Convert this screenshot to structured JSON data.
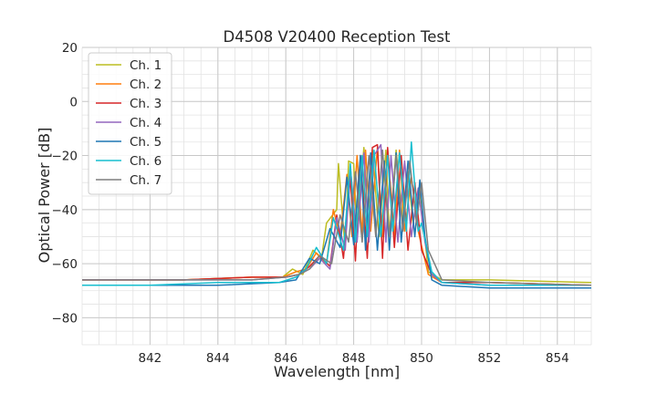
{
  "chart_data": {
    "type": "line",
    "title": "D4508 V20400 Reception Test",
    "xlabel": "Wavelength [nm]",
    "ylabel": "Optical Power [dB]",
    "xlim": [
      840.0,
      855.0
    ],
    "ylim": [
      -90,
      20
    ],
    "x_ticks": [
      842,
      844,
      846,
      848,
      850,
      852,
      854
    ],
    "x_tick_labels": [
      "842",
      "844",
      "846",
      "848",
      "850",
      "852",
      "854"
    ],
    "y_ticks": [
      -80,
      -60,
      -40,
      -20,
      0,
      20
    ],
    "y_tick_labels": [
      "−80",
      "−60",
      "−40",
      "−20",
      "0",
      "20"
    ],
    "grid": true,
    "minor_grid": true,
    "legend_position": "top-left",
    "series": [
      {
        "name": "Ch. 1",
        "color": "#bcbd22",
        "x": [
          840.0,
          843.0,
          845.0,
          845.9,
          846.2,
          846.5,
          846.8,
          847.05,
          847.2,
          847.5,
          847.55,
          847.75,
          847.85,
          848.0,
          848.1,
          848.3,
          848.45,
          848.55,
          848.75,
          848.95,
          849.05,
          849.25,
          849.45,
          849.6,
          849.75,
          849.95,
          850.2,
          850.6,
          852.0,
          855.0
        ],
        "y": [
          -66,
          -66,
          -65,
          -65,
          -62,
          -64,
          -55,
          -58,
          -45,
          -40,
          -23,
          -55,
          -22,
          -23,
          -50,
          -17,
          -50,
          -18,
          -50,
          -18,
          -50,
          -18,
          -45,
          -26,
          -45,
          -32,
          -63,
          -66,
          -66,
          -67
        ]
      },
      {
        "name": "Ch. 2",
        "color": "#ff7f0e",
        "x": [
          840.0,
          843.0,
          845.0,
          845.9,
          846.3,
          846.6,
          846.9,
          847.2,
          847.4,
          847.6,
          847.8,
          847.95,
          848.1,
          848.25,
          848.35,
          848.5,
          848.7,
          848.85,
          849.0,
          849.2,
          849.35,
          849.5,
          849.7,
          849.9,
          850.2,
          850.6,
          852.0,
          855.0
        ],
        "y": [
          -66,
          -66,
          -65,
          -65,
          -63,
          -62,
          -56,
          -60,
          -40,
          -50,
          -27,
          -50,
          -20,
          -50,
          -18,
          -48,
          -17,
          -50,
          -18,
          -50,
          -18,
          -48,
          -28,
          -48,
          -64,
          -67,
          -67,
          -68
        ]
      },
      {
        "name": "Ch. 3",
        "color": "#d62728",
        "x": [
          840.0,
          843.0,
          845.0,
          846.0,
          846.4,
          846.7,
          847.0,
          847.3,
          847.5,
          847.7,
          847.9,
          848.05,
          848.2,
          848.4,
          848.55,
          848.7,
          848.85,
          849.0,
          849.2,
          849.4,
          849.6,
          849.8,
          850.0,
          850.3,
          850.6,
          852.0,
          855.0
        ],
        "y": [
          -66,
          -66,
          -65,
          -65,
          -64,
          -61,
          -57,
          -61,
          -42,
          -58,
          -28,
          -59,
          -20,
          -58,
          -17,
          -16,
          -58,
          -17,
          -54,
          -20,
          -55,
          -30,
          -55,
          -64,
          -67,
          -67,
          -68
        ]
      },
      {
        "name": "Ch. 4",
        "color": "#9467bd",
        "x": [
          840.0,
          843.0,
          845.0,
          846.0,
          846.4,
          846.7,
          847.0,
          847.3,
          847.5,
          847.75,
          847.9,
          848.1,
          848.3,
          848.45,
          848.6,
          848.8,
          848.95,
          849.1,
          849.3,
          849.5,
          849.7,
          849.9,
          850.1,
          850.3,
          850.6,
          852.0,
          855.0
        ],
        "y": [
          -66,
          -66,
          -66,
          -65,
          -64,
          -62,
          -58,
          -62,
          -43,
          -55,
          -24,
          -52,
          -19,
          -52,
          -20,
          -16,
          -52,
          -20,
          -52,
          -22,
          -50,
          -32,
          -52,
          -64,
          -67,
          -68,
          -68
        ]
      },
      {
        "name": "Ch. 5",
        "color": "#1f77b4",
        "x": [
          840.0,
          842.0,
          844.0,
          845.8,
          846.3,
          846.5,
          846.7,
          847.0,
          847.3,
          847.6,
          847.8,
          848.0,
          848.2,
          848.35,
          848.5,
          848.7,
          848.9,
          849.05,
          849.25,
          849.4,
          849.6,
          849.8,
          849.95,
          850.1,
          850.3,
          850.6,
          852.0,
          855.0
        ],
        "y": [
          -68,
          -68,
          -68,
          -67,
          -66,
          -62,
          -58,
          -60,
          -47,
          -54,
          -28,
          -53,
          -20,
          -55,
          -19,
          -55,
          -22,
          -55,
          -19,
          -52,
          -22,
          -50,
          -29,
          -50,
          -66,
          -68,
          -69,
          -69
        ]
      },
      {
        "name": "Ch. 6",
        "color": "#17becf",
        "x": [
          840.0,
          842.0,
          844.0,
          845.8,
          846.3,
          846.6,
          846.9,
          847.2,
          847.4,
          847.7,
          847.9,
          848.05,
          848.25,
          848.4,
          848.6,
          848.8,
          849.0,
          849.15,
          849.35,
          849.55,
          849.7,
          849.9,
          850.0,
          850.3,
          850.6,
          852.0,
          855.0
        ],
        "y": [
          -68,
          -68,
          -67,
          -67,
          -65,
          -62,
          -54,
          -60,
          -43,
          -55,
          -23,
          -52,
          -20,
          -50,
          -18,
          -50,
          -20,
          -48,
          -19,
          -48,
          -15,
          -48,
          -45,
          -63,
          -67,
          -68,
          -68
        ]
      },
      {
        "name": "Ch. 7",
        "color": "#7f7f7f",
        "x": [
          840.0,
          843.0,
          845.0,
          846.0,
          846.4,
          846.7,
          847.0,
          847.35,
          847.6,
          847.85,
          848.05,
          848.25,
          848.45,
          848.65,
          848.85,
          849.05,
          849.25,
          849.45,
          849.65,
          849.85,
          850.0,
          850.2,
          850.6,
          852.0,
          855.0
        ],
        "y": [
          -66,
          -66,
          -66,
          -65,
          -64,
          -62,
          -57,
          -60,
          -42,
          -52,
          -26,
          -52,
          -20,
          -50,
          -18,
          -50,
          -20,
          -48,
          -22,
          -45,
          -30,
          -55,
          -66,
          -67,
          -68
        ]
      }
    ]
  }
}
